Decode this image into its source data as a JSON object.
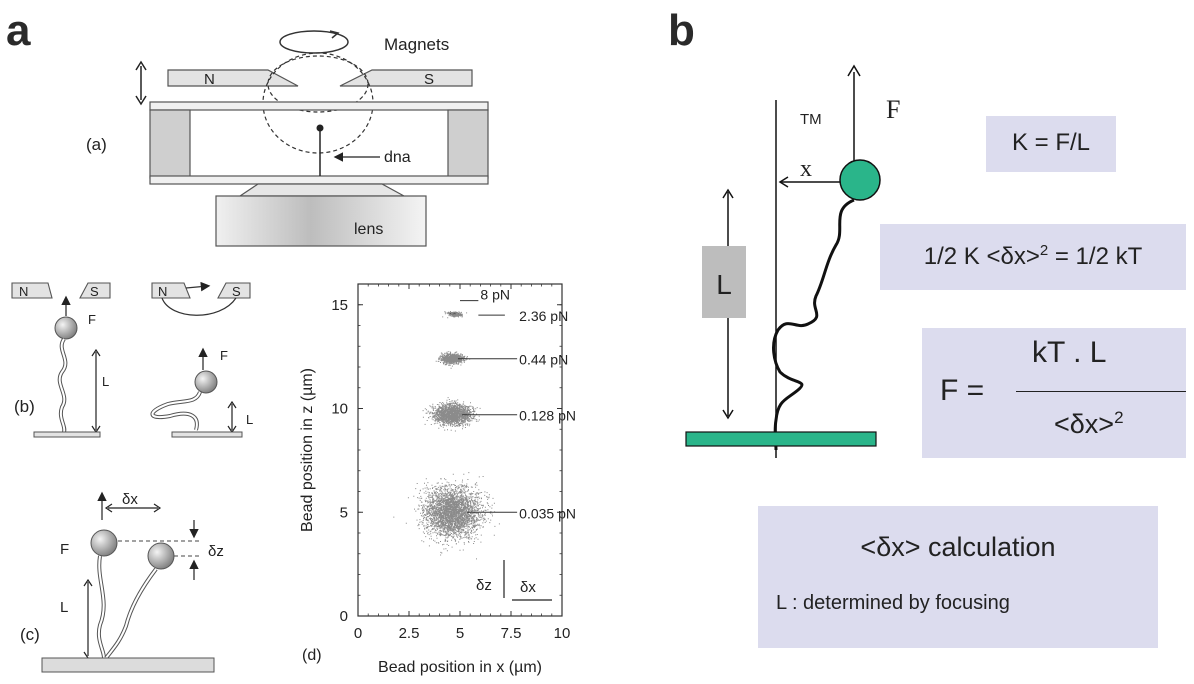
{
  "panel_a": {
    "letter": "a",
    "sub_a": {
      "label": "(a)",
      "magnets": "Magnets",
      "north": "N",
      "south": "S",
      "dna": "dna",
      "lens": "lens"
    },
    "sub_b": {
      "label": "(b)",
      "north": "N",
      "south": "S",
      "force": "F",
      "length": "L"
    },
    "sub_c": {
      "label": "(c)",
      "force": "F",
      "length": "L",
      "dx": "δx",
      "dz": "δz"
    },
    "sub_d": {
      "label": "(d)",
      "xlabel": "Bead position in x (µm)",
      "ylabel": "Bead position in z (µm)",
      "xticks": [
        "0",
        "2.5",
        "5",
        "7.5",
        "10"
      ],
      "yticks": [
        "0",
        "5",
        "10",
        "15"
      ],
      "dz": "δz",
      "dx": "δx",
      "forces": [
        {
          "label": "8 pN"
        },
        {
          "label": "2.36 pN"
        },
        {
          "label": "0.44 pN"
        },
        {
          "label": "0.128 pN"
        },
        {
          "label": "0.035 pN"
        }
      ]
    }
  },
  "panel_b": {
    "letter": "b",
    "tm": "TM",
    "force": "F",
    "x": "x",
    "length": "L",
    "eq1": "K = F/L",
    "eq2_lhs": "1/2 K <δx>",
    "eq2_sup": "2",
    "eq2_rhs": " = 1/2 kT",
    "eq3_lhs": "F =",
    "eq3_num": "kT . L",
    "eq3_den": "<δx>",
    "eq3_sup": "2",
    "calc": "<δx> calculation",
    "note": "L : determined by focusing"
  },
  "chart_data": {
    "type": "scatter",
    "title": "",
    "xlabel": "Bead position in x (µm)",
    "ylabel": "Bead position in z (µm)",
    "xlim": [
      0,
      10
    ],
    "ylim": [
      0,
      16
    ],
    "series": [
      {
        "name": "8 pN",
        "center": [
          4.6,
          14.6
        ],
        "spread": [
          0.4,
          0.05
        ]
      },
      {
        "name": "2.36 pN",
        "center": [
          4.8,
          14.5
        ],
        "spread": [
          0.35,
          0.08
        ]
      },
      {
        "name": "0.44 pN",
        "center": [
          4.6,
          12.4
        ],
        "spread": [
          0.6,
          0.25
        ]
      },
      {
        "name": "0.128 pN",
        "center": [
          4.6,
          9.7
        ],
        "spread": [
          1.0,
          0.55
        ]
      },
      {
        "name": "0.035 pN",
        "center": [
          4.6,
          5.0
        ],
        "spread": [
          1.5,
          1.3
        ]
      }
    ],
    "colors": {
      "points": "#2b2b2b"
    }
  }
}
